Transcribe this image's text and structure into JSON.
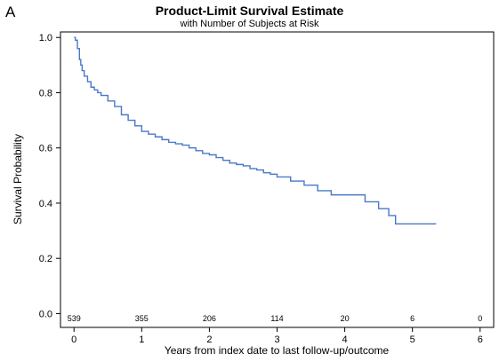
{
  "panel_letter": "A",
  "chart_data": {
    "type": "line",
    "title": "Product-Limit Survival Estimate",
    "subtitle": "with Number of Subjects at Risk",
    "xlabel": "Years from index date to last follow-up/outcome",
    "ylabel": "Survival Probability",
    "xlim": [
      -0.2,
      6.2
    ],
    "ylim": [
      -0.05,
      1.02
    ],
    "x_ticks": [
      0,
      1,
      2,
      3,
      4,
      5,
      6
    ],
    "y_ticks": [
      0.0,
      0.2,
      0.4,
      0.6,
      0.8,
      1.0
    ],
    "y_tick_labels": [
      "0.0",
      "0.2",
      "0.4",
      "0.6",
      "0.8",
      "1.0"
    ],
    "grid": false,
    "line_color": "#4a78c8",
    "series": [
      {
        "step": true,
        "x": [
          0,
          0.02,
          0.05,
          0.08,
          0.1,
          0.12,
          0.15,
          0.2,
          0.25,
          0.3,
          0.35,
          0.4,
          0.5,
          0.6,
          0.7,
          0.8,
          0.9,
          1.0,
          1.1,
          1.2,
          1.3,
          1.4,
          1.5,
          1.6,
          1.7,
          1.8,
          1.9,
          2.0,
          2.1,
          2.2,
          2.3,
          2.4,
          2.5,
          2.6,
          2.7,
          2.8,
          2.9,
          3.0,
          3.2,
          3.4,
          3.6,
          3.8,
          4.0,
          4.3,
          4.5,
          4.65,
          4.75,
          5.35
        ],
        "y": [
          1.0,
          0.99,
          0.96,
          0.92,
          0.9,
          0.88,
          0.86,
          0.84,
          0.82,
          0.81,
          0.8,
          0.79,
          0.77,
          0.75,
          0.72,
          0.7,
          0.68,
          0.66,
          0.65,
          0.64,
          0.63,
          0.62,
          0.615,
          0.61,
          0.6,
          0.59,
          0.58,
          0.575,
          0.565,
          0.555,
          0.545,
          0.54,
          0.535,
          0.525,
          0.52,
          0.51,
          0.505,
          0.495,
          0.48,
          0.465,
          0.445,
          0.43,
          0.43,
          0.405,
          0.38,
          0.355,
          0.325,
          0.325
        ]
      }
    ],
    "at_risk": {
      "times": [
        0,
        1,
        2,
        3,
        4,
        5,
        6
      ],
      "counts": [
        "539",
        "355",
        "206",
        "114",
        "20",
        "6",
        "0"
      ]
    }
  }
}
